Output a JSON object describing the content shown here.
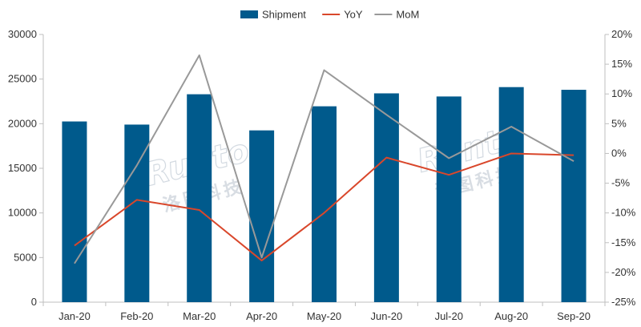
{
  "chart_data": {
    "type": "bar+line",
    "categories": [
      "Jan-20",
      "Feb-20",
      "Mar-20",
      "Apr-20",
      "May-20",
      "Jun-20",
      "Jul-20",
      "Aug-20",
      "Sep-20"
    ],
    "series": [
      {
        "name": "Shipment",
        "type": "bar",
        "axis": "left",
        "color": "#005a8c",
        "values": [
          20250,
          19900,
          23300,
          19250,
          21950,
          23400,
          23050,
          24100,
          23800
        ]
      },
      {
        "name": "YoY",
        "type": "line",
        "axis": "right",
        "color": "#d9472b",
        "values": [
          -15.5,
          -7.8,
          -9.5,
          -18.0,
          -10.0,
          -0.7,
          -3.6,
          0.0,
          -0.3
        ]
      },
      {
        "name": "MoM",
        "type": "line",
        "axis": "right",
        "color": "#999999",
        "values": [
          -18.5,
          -2.0,
          16.5,
          -17.5,
          14.0,
          6.5,
          -0.8,
          4.5,
          -1.3
        ]
      }
    ],
    "y_left": {
      "min": 0,
      "max": 30000,
      "ticks": [
        "0",
        "5000",
        "10000",
        "15000",
        "20000",
        "25000",
        "30000"
      ]
    },
    "y_right": {
      "min": -25,
      "max": 20,
      "ticks": [
        "-25%",
        "-20%",
        "-15%",
        "-10%",
        "-5%",
        "0%",
        "5%",
        "10%",
        "15%",
        "20%"
      ]
    },
    "legend_position": "top-center",
    "grid": false,
    "title": "",
    "xlabel": "",
    "ylabel": ""
  },
  "watermark": {
    "latin": "Runto",
    "chinese": "洛图科技"
  }
}
